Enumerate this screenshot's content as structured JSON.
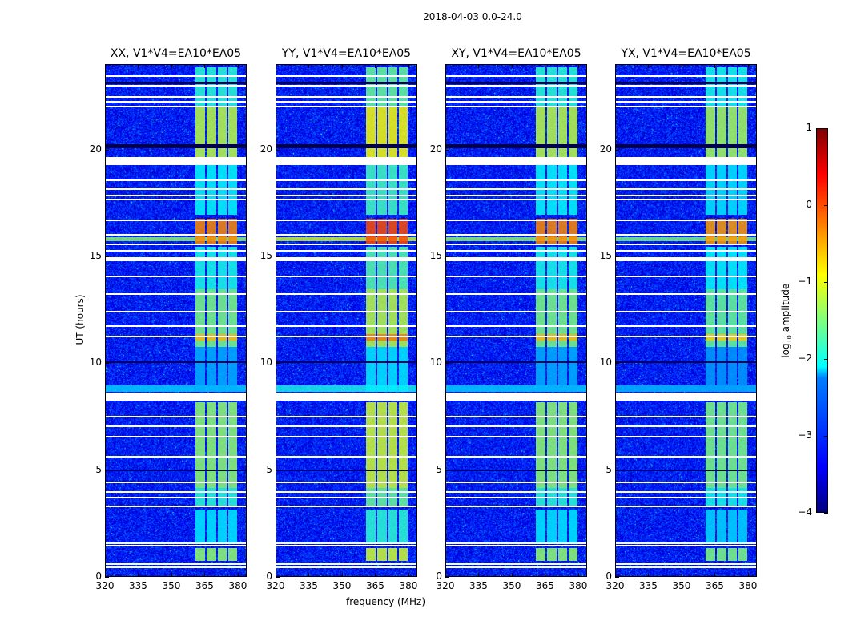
{
  "chart_data": {
    "type": "heatmap",
    "title": "2018-04-03 0.0-24.0",
    "xlabel": "frequency (MHz)",
    "ylabel": "UT (hours)",
    "xlim": [
      320,
      384
    ],
    "ylim": [
      0,
      24
    ],
    "xticks": [
      320,
      335,
      350,
      365,
      380
    ],
    "yticks": [
      0,
      5,
      10,
      15,
      20
    ],
    "colorbar": {
      "label_main": "log",
      "label_sub": "10",
      "label_rest": " amplitude",
      "range": [
        -4,
        1
      ],
      "ticks": [
        -4,
        -3,
        -2,
        -1,
        0,
        1
      ],
      "tick_labels": [
        "−4",
        "−3",
        "−2",
        "−1",
        "0",
        "1"
      ],
      "colormap": "jet"
    },
    "background_level": -3.3,
    "panels": [
      {
        "title": "XX, V1*V4=EA10*EA05",
        "gain": 0
      },
      {
        "title": "YY, V1*V4=EA10*EA05",
        "gain": 0.3
      },
      {
        "title": "XY, V1*V4=EA10*EA05",
        "gain": 0
      },
      {
        "title": "YX, V1*V4=EA10*EA05",
        "gain": -0.1
      }
    ],
    "channels": [
      [
        360.5,
        364.8
      ],
      [
        365.6,
        369.8
      ],
      [
        370.5,
        374.6
      ],
      [
        375.4,
        379.3
      ]
    ],
    "band_intervals": [
      {
        "t": [
          0.8,
          1.4
        ],
        "v": -1.4
      },
      {
        "t": [
          1.6,
          3.2
        ],
        "v": -2.2
      },
      {
        "t": [
          3.3,
          4.2
        ],
        "v": -1.9
      },
      {
        "t": [
          4.2,
          8.2
        ],
        "v": -1.4
      },
      {
        "t": [
          8.7,
          10.8
        ],
        "v": -2.5
      },
      {
        "t": [
          10.8,
          13.5
        ],
        "v": -1.5
      },
      {
        "t": [
          11.1,
          11.4
        ],
        "v": -0.5
      },
      {
        "t": [
          13.5,
          15.5
        ],
        "v": -2.0
      },
      {
        "t": [
          15.6,
          16.8
        ],
        "v": -0.3
      },
      {
        "t": [
          17.0,
          19.3
        ],
        "v": -2.1
      },
      {
        "t": [
          19.7,
          22.0
        ],
        "v": -1.2
      },
      {
        "t": [
          22.0,
          23.9
        ],
        "v": -1.9
      }
    ],
    "broadband_events": [
      {
        "t": [
          15.75,
          15.95
        ],
        "v": -1.4
      },
      {
        "t": [
          8.7,
          9.0
        ],
        "v": -2.3
      }
    ],
    "flagged_hours": [
      [
        0.45,
        0.52
      ],
      [
        0.62,
        0.68
      ],
      [
        1.48,
        1.53
      ],
      [
        1.6,
        1.64
      ],
      [
        3.33,
        3.38
      ],
      [
        3.72,
        3.77
      ],
      [
        4.02,
        4.06
      ],
      [
        4.47,
        4.51
      ],
      [
        5.66,
        5.7
      ],
      [
        6.58,
        6.62
      ],
      [
        7.08,
        7.12
      ],
      [
        7.53,
        7.57
      ],
      [
        8.3,
        8.67
      ],
      [
        11.28,
        11.31
      ],
      [
        11.76,
        11.8
      ],
      [
        12.43,
        12.47
      ],
      [
        13.28,
        13.32
      ],
      [
        14.08,
        14.12
      ],
      [
        14.8,
        15.0
      ],
      [
        15.28,
        15.32
      ],
      [
        15.58,
        15.62
      ],
      [
        16.05,
        16.09
      ],
      [
        16.73,
        16.77
      ],
      [
        17.68,
        17.72
      ],
      [
        17.88,
        17.92
      ],
      [
        18.18,
        18.22
      ],
      [
        18.58,
        18.62
      ],
      [
        19.3,
        19.7
      ],
      [
        22.03,
        22.07
      ],
      [
        22.28,
        22.32
      ],
      [
        22.48,
        22.52
      ],
      [
        23.04,
        23.08
      ],
      [
        23.48,
        23.52
      ]
    ],
    "dark_hours": [
      [
        4.98,
        5.03
      ],
      [
        10.05,
        10.12
      ],
      [
        20.1,
        20.3
      ],
      [
        23.1,
        23.2
      ]
    ]
  }
}
